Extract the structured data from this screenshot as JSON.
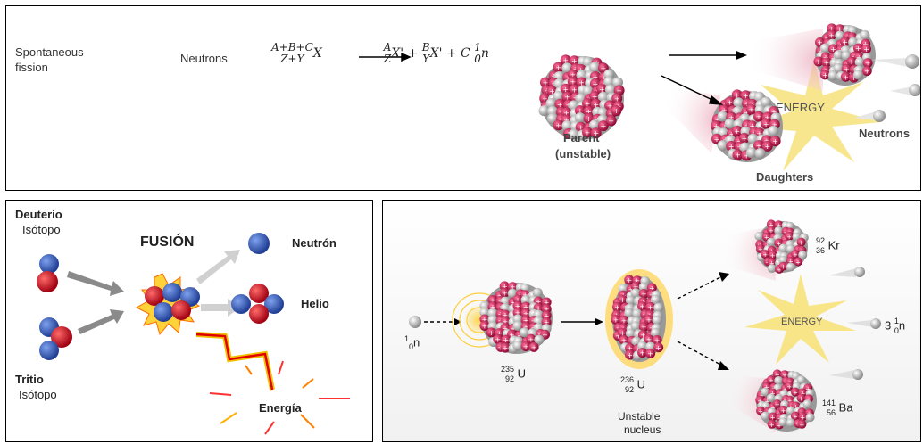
{
  "fission_top": {
    "label_line1": "Spontaneous",
    "label_line2": "fission",
    "neutrons_label": "Neutrons",
    "equation": "A+B+C Z+Y X → A Z X' + B Y X' + C 1 0 n",
    "parent_label_1": "Parent",
    "parent_label_2": "(unstable)",
    "energy_label": "ENERGY",
    "neutrons_right_label": "Neutrons",
    "daughters_label": "Daughters"
  },
  "fusion": {
    "deuterio": "Deuterio",
    "deuterio_sub": "Isótopo",
    "tritio": "Tritio",
    "tritio_sub": "Isótopo",
    "title": "FUSIÓN",
    "neutron": "Neutrón",
    "helio": "Helio",
    "energia": "Energía"
  },
  "uranium_fission": {
    "neutron_in_sup": "1",
    "neutron_in_sub": "0",
    "neutron_in_sym": "n",
    "u235_sup": "235",
    "u235_sub": "92",
    "u235_sym": "U",
    "u236_sup": "236",
    "u236_sub": "92",
    "u236_sym": "U",
    "unstable_1": "Unstable",
    "unstable_2": "nucleus",
    "energy": "ENERGY",
    "kr_sup": "92",
    "kr_sub": "36",
    "kr_sym": "Kr",
    "ba_sup": "141",
    "ba_sub": "56",
    "ba_sym": "Ba",
    "out_count": "3",
    "out_sup": "1",
    "out_sub": "0",
    "out_sym": "n"
  },
  "colors": {
    "proton": "#c8104a",
    "neutron_gray": "#b8b8b8",
    "fusion_blue": "#2f55b8",
    "fusion_red": "#d6101c",
    "energy_yellow": "#f5df6a"
  }
}
